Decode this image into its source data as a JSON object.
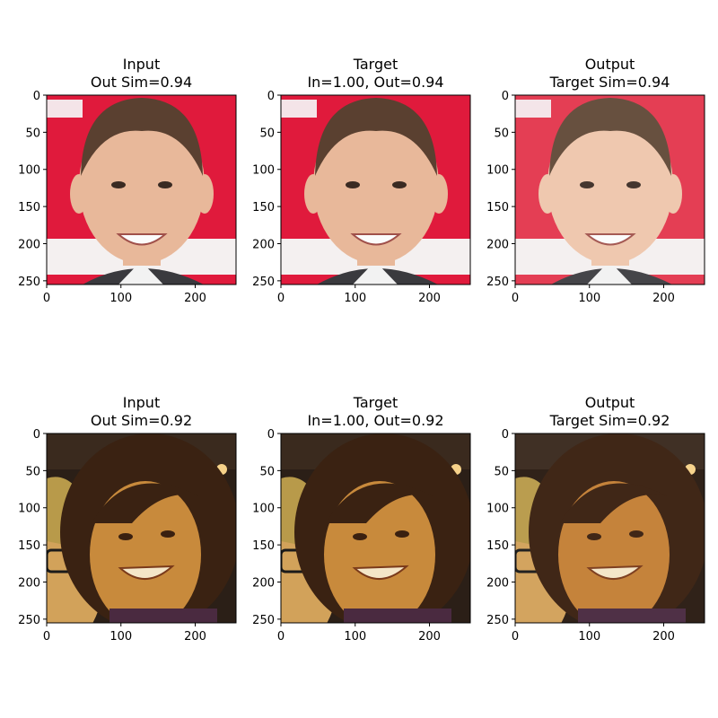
{
  "chart_data": {
    "type": "image-grid",
    "panel_extent": [
      0,
      255
    ],
    "x_ticks": [
      0,
      100,
      200
    ],
    "y_ticks": [
      0,
      50,
      100,
      150,
      200,
      250
    ],
    "rows": [
      {
        "panels": [
          {
            "title_line1": "Input",
            "title_line2": "Out Sim=0.94",
            "image_description": "close-up portrait of smiling man with short dark hair, red and white banner background",
            "colors": {
              "bg": "#e01a3c",
              "skin": "#e8b89a",
              "hair": "#5a4030"
            }
          },
          {
            "title_line1": "Target",
            "title_line2": "In=1.00, Out=0.94",
            "image_description": "same portrait of smiling man, red and white banner background",
            "colors": {
              "bg": "#e01a3c",
              "skin": "#e8b89a",
              "hair": "#5a4030"
            }
          },
          {
            "title_line1": "Output",
            "title_line2": "Target Sim=0.94",
            "image_description": "reconstructed portrait of smiling man, smoother texture, red and white background",
            "colors": {
              "bg": "#e3324a",
              "skin": "#efc5ab",
              "hair": "#5e4634"
            }
          }
        ]
      },
      {
        "panels": [
          {
            "title_line1": "Input",
            "title_line2": "Out Sim=0.92",
            "image_description": "warm-lit photo of smiling woman with dark curly hair, another person with glasses at left",
            "colors": {
              "bg": "#2b1f17",
              "skin": "#c88a3c",
              "hair": "#3a2212"
            }
          },
          {
            "title_line1": "Target",
            "title_line2": "In=1.00, Out=0.92",
            "image_description": "same warm-lit photo of smiling woman and person with glasses",
            "colors": {
              "bg": "#2b1f17",
              "skin": "#c88a3c",
              "hair": "#3a2212"
            }
          },
          {
            "title_line1": "Output",
            "title_line2": "Target Sim=0.92",
            "image_description": "reconstructed warm-lit photo of smiling woman, smoother texture",
            "colors": {
              "bg": "#2a1b12",
              "skin": "#c47f35",
              "hair": "#3a2010"
            }
          }
        ]
      }
    ]
  }
}
